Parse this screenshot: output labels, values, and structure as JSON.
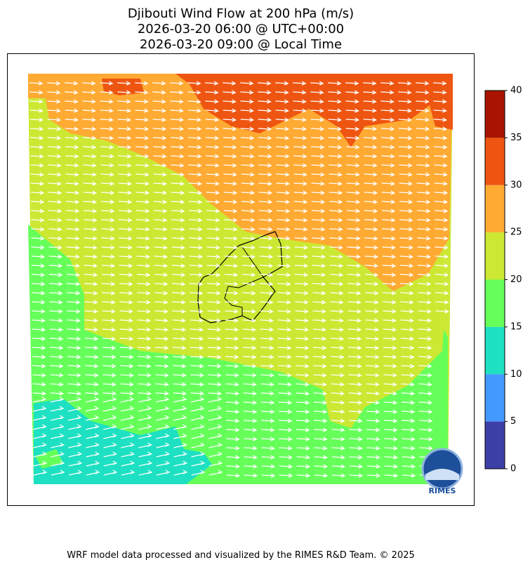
{
  "title": [
    "Djibouti Wind Flow at 200 hPa (m/s)",
    "2026-03-20 06:00 @ UTC+00:00",
    "2026-03-20 09:00 @ Local Time"
  ],
  "colorbar": {
    "levels": [
      0,
      5,
      10,
      15,
      20,
      25,
      30,
      35,
      40
    ],
    "colors": [
      "#3f3fa8",
      "#4499ff",
      "#1ee0c2",
      "#66ff5a",
      "#cce833",
      "#ffaa33",
      "#ee5511",
      "#a81400"
    ]
  },
  "logo": "RIMES",
  "footer": "WRF model data processed and visualized by the RIMES R&D Team. © 2025"
}
